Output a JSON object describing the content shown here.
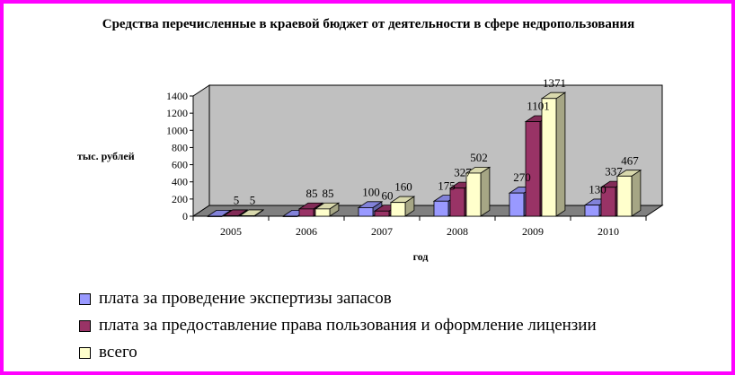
{
  "colors": {
    "frame": "#ff00ff",
    "series1": "#9999ff",
    "series2": "#993366",
    "series3": "#ffffcc"
  },
  "chart_data": {
    "type": "bar",
    "title": "Средства перечисленные в краевой бюджет от деятельности в сфере недропользования",
    "xlabel": "год",
    "ylabel": "тыс. рублей",
    "categories": [
      "2005",
      "2006",
      "2007",
      "2008",
      "2009",
      "2010"
    ],
    "ylim": [
      0,
      1400
    ],
    "yticks": [
      "0",
      "200",
      "400",
      "600",
      "800",
      "1000",
      "1200",
      "1400"
    ],
    "three_d": true,
    "grid": false,
    "legend_position": "bottom",
    "series": [
      {
        "name": "плата за проведение экспертизы запасов",
        "values": [
          null,
          null,
          100,
          175,
          270,
          130
        ],
        "color": "#9999ff"
      },
      {
        "name": "плата за предоставление права пользования и оформление лицензии",
        "values": [
          5,
          85,
          60,
          327,
          1101,
          337
        ],
        "color": "#993366"
      },
      {
        "name": "всего",
        "values": [
          5,
          85,
          160,
          502,
          1371,
          467
        ],
        "color": "#ffffcc"
      }
    ],
    "data_labels": {
      "plotted_values": [
        [
          0,
          0,
          100,
          175,
          270,
          130
        ],
        [
          5,
          85,
          60,
          327,
          1101,
          337
        ],
        [
          5,
          85,
          160,
          502,
          1371,
          467
        ]
      ],
      "printed_values": [
        [
          null,
          null,
          "100",
          "175",
          "270",
          "130"
        ],
        [
          "5",
          "85",
          "60",
          "327",
          "1101",
          "337"
        ],
        [
          "5",
          "85",
          "160",
          "502",
          "1371",
          "467"
        ]
      ]
    }
  }
}
